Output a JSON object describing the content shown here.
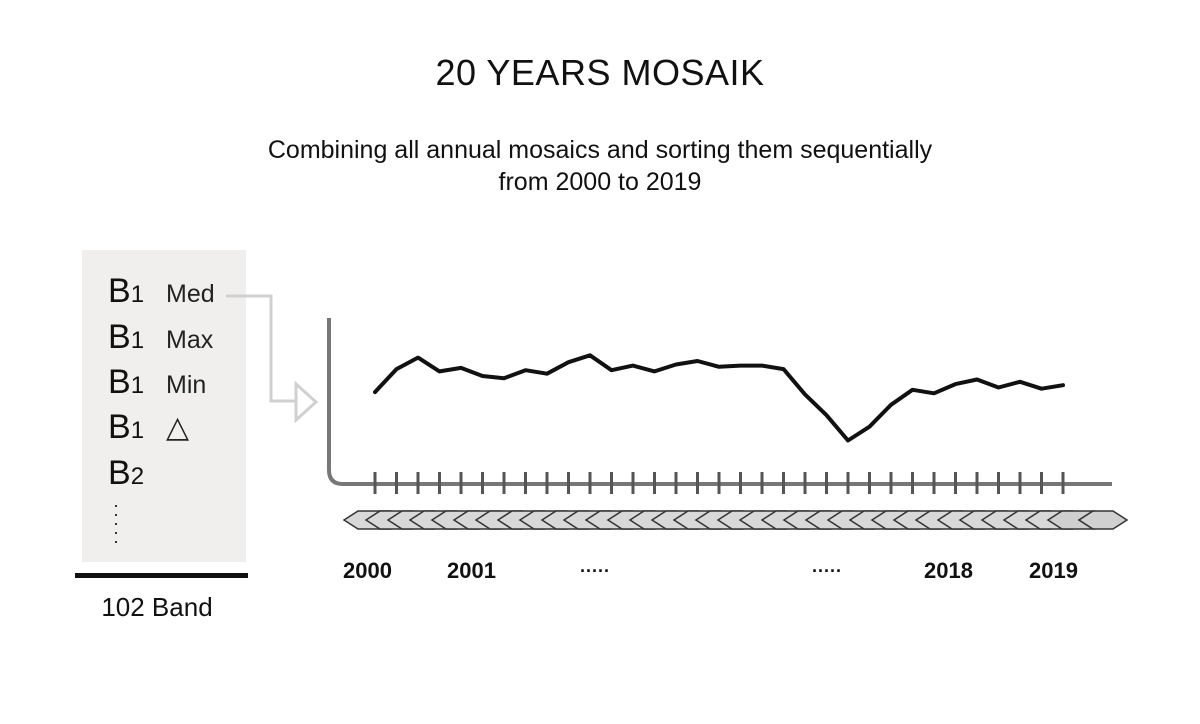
{
  "title": "20 YEARS MOSAIK",
  "subtitle_line1": "Combining all annual mosaics and sorting them sequentially",
  "subtitle_line2": "from 2000 to 2019",
  "bands": [
    {
      "code": "B",
      "index": "1",
      "stat": "Med"
    },
    {
      "code": "B",
      "index": "1",
      "stat": "Max"
    },
    {
      "code": "B",
      "index": "1",
      "stat": "Min"
    },
    {
      "code": "B",
      "index": "1",
      "stat": "△"
    },
    {
      "code": "B",
      "index": "2",
      "stat": ""
    }
  ],
  "band_total": "102 Band",
  "timeline_labels": {
    "first": "2000",
    "second": "2001",
    "ellipsis_left": ".....",
    "ellipsis_right": ".....",
    "third_last": "2018",
    "last": "2019"
  },
  "colors": {
    "panel": "#f0efee",
    "axis": "#777777",
    "line": "#111111",
    "arrow": "#d0d0d0",
    "diamond_fill": "#d8d8d8"
  },
  "chart_data": {
    "type": "line",
    "title": "",
    "xlabel": "",
    "ylabel": "",
    "n_points": 33,
    "values": [
      0.52,
      0.72,
      0.82,
      0.7,
      0.73,
      0.66,
      0.64,
      0.71,
      0.68,
      0.78,
      0.84,
      0.71,
      0.75,
      0.7,
      0.76,
      0.79,
      0.74,
      0.75,
      0.75,
      0.72,
      0.5,
      0.32,
      0.1,
      0.22,
      0.41,
      0.54,
      0.51,
      0.59,
      0.63,
      0.56,
      0.61,
      0.55,
      0.58
    ],
    "ticks": 33,
    "grid": false,
    "legend": "none"
  }
}
